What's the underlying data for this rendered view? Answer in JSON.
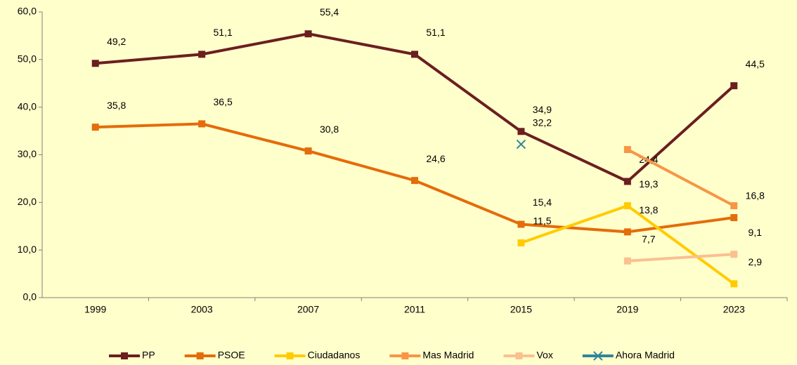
{
  "chart_data": {
    "type": "line",
    "categories": [
      "1999",
      "2003",
      "2007",
      "2011",
      "2015",
      "2019",
      "2023"
    ],
    "ylim": [
      0,
      60
    ],
    "yticks": [
      {
        "value": 0,
        "label": "0,0"
      },
      {
        "value": 10,
        "label": "10,0"
      },
      {
        "value": 20,
        "label": "20,0"
      },
      {
        "value": 30,
        "label": "30,0"
      },
      {
        "value": 40,
        "label": "40,0"
      },
      {
        "value": 50,
        "label": "50,0"
      },
      {
        "value": 60,
        "label": "60,0"
      }
    ],
    "grid": false,
    "legend": "bottom",
    "series": [
      {
        "name": "PP",
        "color": "#6b1f1f",
        "marker": "square",
        "values": [
          49.2,
          51.1,
          55.4,
          51.1,
          34.9,
          24.4,
          44.5
        ],
        "value_labels": [
          "49,2",
          "51,1",
          "55,4",
          "51,1",
          "34,9",
          "24,4",
          "44,5"
        ]
      },
      {
        "name": "PSOE",
        "color": "#e46c0a",
        "marker": "square",
        "values": [
          35.8,
          36.5,
          30.8,
          24.6,
          15.4,
          13.8,
          16.8
        ],
        "value_labels": [
          "35,8",
          "36,5",
          "30,8",
          "24,6",
          "15,4",
          "13,8",
          "16,8"
        ]
      },
      {
        "name": "Ciudadanos",
        "color": "#ffcc00",
        "marker": "square",
        "values": [
          null,
          null,
          null,
          null,
          11.5,
          19.3,
          2.9
        ],
        "value_labels": [
          null,
          null,
          null,
          null,
          "11,5",
          "19,3",
          "2,9"
        ]
      },
      {
        "name": "Mas Madrid",
        "color": "#f79646",
        "marker": "square",
        "values": [
          null,
          null,
          null,
          null,
          null,
          31.1,
          19.3
        ]
      },
      {
        "name": "Vox",
        "color": "#fac090",
        "marker": "square",
        "values": [
          null,
          null,
          null,
          null,
          null,
          7.7,
          9.1
        ],
        "value_labels": [
          null,
          null,
          null,
          null,
          null,
          "7,7",
          "9,1"
        ]
      },
      {
        "name": "Ahora Madrid",
        "color": "#31849b",
        "marker": "x",
        "values": [
          null,
          null,
          null,
          null,
          32.2,
          null,
          null
        ],
        "value_labels": [
          null,
          null,
          null,
          null,
          "32,2",
          null,
          null
        ]
      }
    ]
  }
}
